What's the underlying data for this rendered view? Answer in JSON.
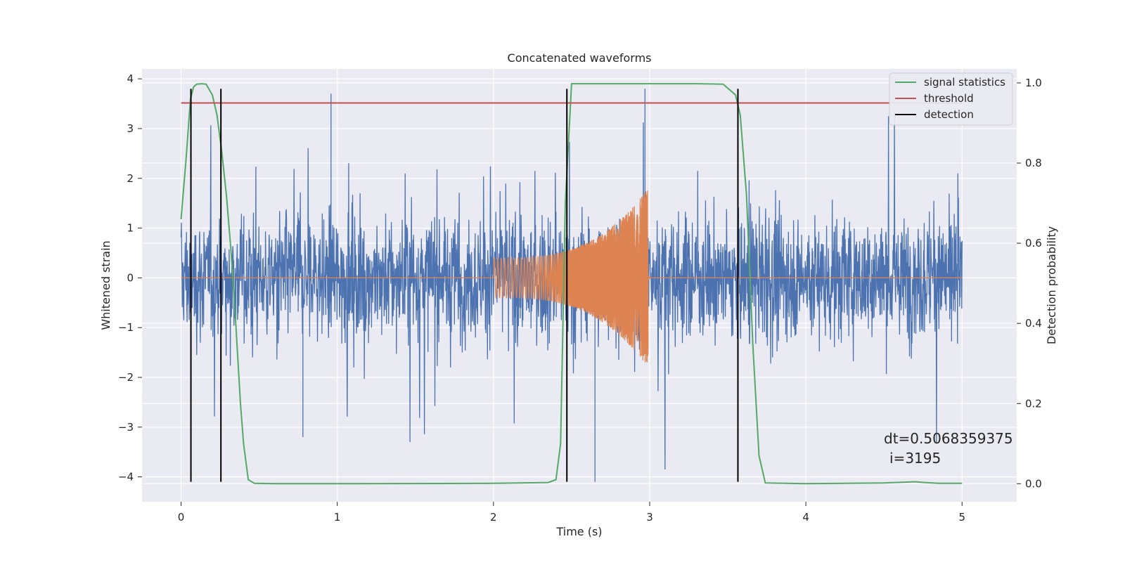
{
  "chart_data": {
    "type": "line",
    "title": "Concatenated waveforms",
    "xlabel": "Time (s)",
    "ylabel": "Whitened strain",
    "y2label": "Detection probability",
    "xlim": [
      -0.25,
      5.35
    ],
    "ylim": [
      -4.5,
      4.2
    ],
    "y2lim": [
      -0.045,
      1.035
    ],
    "xticks": [
      0,
      1,
      2,
      3,
      4,
      5
    ],
    "yticks": [
      -4,
      -3,
      -2,
      -1,
      0,
      1,
      2,
      3,
      4
    ],
    "y2ticks": [
      0.0,
      0.2,
      0.4,
      0.6,
      0.8,
      1.0
    ],
    "xtick_labels": [
      "0",
      "1",
      "2",
      "3",
      "4",
      "5"
    ],
    "ytick_labels": [
      "−4",
      "−3",
      "−2",
      "−1",
      "0",
      "1",
      "2",
      "3",
      "4"
    ],
    "y2tick_labels": [
      "0.0",
      "0.2",
      "0.4",
      "0.6",
      "0.8",
      "1.0"
    ],
    "grid": true,
    "legend_placement": "top-right",
    "colors": {
      "background": "#eaeaf2",
      "noise": "#4c72b0",
      "injection": "#dd8452",
      "statistic": "#55a868",
      "threshold": "#c44e52",
      "detection": "#000000"
    },
    "series": [
      {
        "name": "signal statistics",
        "axis": "right",
        "x": [
          0.0,
          0.03,
          0.06,
          0.08,
          0.1,
          0.13,
          0.16,
          0.2,
          0.23,
          0.26,
          0.29,
          0.32,
          0.35,
          0.38,
          0.4,
          0.43,
          0.47,
          0.6,
          1.0,
          2.0,
          2.35,
          2.4,
          2.43,
          2.46,
          2.5,
          3.0,
          3.3,
          3.47,
          3.55,
          3.58,
          3.62,
          3.66,
          3.7,
          3.74,
          4.0,
          4.5,
          4.7,
          4.76,
          4.85,
          5.0
        ],
        "values": [
          0.66,
          0.8,
          0.96,
          0.99,
          0.997,
          0.998,
          0.997,
          0.97,
          0.92,
          0.83,
          0.72,
          0.58,
          0.4,
          0.2,
          0.1,
          0.01,
          0.001,
          0.0,
          0.0,
          0.001,
          0.003,
          0.01,
          0.1,
          0.7,
          0.998,
          0.998,
          0.998,
          0.997,
          0.97,
          0.92,
          0.72,
          0.35,
          0.07,
          0.002,
          0.0,
          0.002,
          0.005,
          0.003,
          0.001,
          0.001
        ]
      },
      {
        "name": "threshold",
        "axis": "right",
        "x": [
          0.0,
          5.0
        ],
        "values": [
          0.95,
          0.95
        ]
      },
      {
        "name": "detection",
        "axis": "left",
        "x": [
          0.063,
          0.255,
          2.47,
          3.565
        ],
        "ymin": -4.1,
        "ymax": 3.8
      }
    ],
    "whitened_strain": {
      "x_range": [
        0.0,
        5.0
      ],
      "amplitude_peaks": [
        3.7,
        -3.2,
        3.8,
        -4.1
      ]
    },
    "injection": {
      "x_range": [
        2.0,
        3.0
      ],
      "amplitude_range": [
        0.4,
        1.8
      ]
    },
    "annotations": [
      "dt=0.5068359375",
      "i=3195"
    ]
  }
}
